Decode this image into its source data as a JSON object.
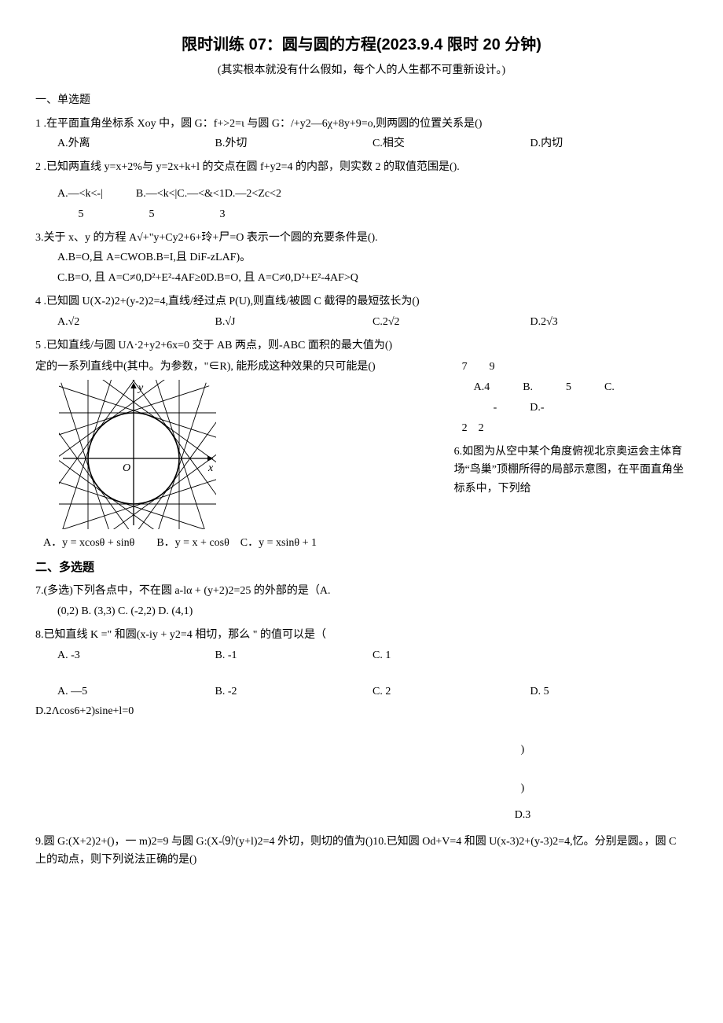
{
  "title": "限时训练 07：圆与圆的方程(2023.9.4 限时 20 分钟)",
  "subtitle": "(其实根本就没有什么假如，每个人的人生都不可重新设计。)",
  "section1": "一、单选题",
  "q1": {
    "text": "1 .在平面直角坐标系 Xoy 中，圆 G：f+>2=ι 与圆 G：/+y2—6χ+8y+9=o,则两圆的位置关系是()",
    "A": "A.外离",
    "B": "B.外切",
    "C": "C.相交",
    "D": "D.内切"
  },
  "q2": {
    "text": "2 .已知两直线 y=x+2%与 y=2x+k+l 的交点在圆 f+y2=4 的内部，则实数 2 的取值范围是().",
    "optLine": "A.—<k<-|   B.—<k<|C.—<&<1D.—2<Zc<2",
    "numA": "5",
    "numB": "5",
    "numC": "3"
  },
  "q3": {
    "text": "3.关于 x、y 的方程 A√+\"y+Cy2+6+玲+尸=O 表示一个圆的充要条件是().",
    "l1": "A.B=O,且 A=CWOB.B=I,且 DiF-zLAF)。",
    "l2": "C.B=O, 且 A=C≠0,D²+E²-4AF≥0D.B=O, 且 A=C≠0,D²+E²-4AF>Q"
  },
  "q4": {
    "text": "4 .已知圆 U(X-2)2+(y-2)2=4,直线/经过点 P(U),则直线/被圆 C 截得的最短弦长为()",
    "A": "A.√2",
    "B": "B.√J",
    "C": "C.2√2",
    "D": "D.2√3"
  },
  "q5": {
    "text": "5 .已知直线/与圆 UΛ·2+y2+6x=0 交于 AB 两点，则-ABC 面积的最大值为()",
    "text2": "定的一系列直线中(其中。为参数，\"∈R), 能形成这种效果的只可能是()",
    "rNums": "7  9",
    "rOpts1": "A.4   B.   5   C.",
    "rOpts2": "-   D.-",
    "rNums2": "2 2",
    "rText": "6.如图为从空中某个角度俯视北京奥运会主体育场“鸟巢”顶棚所得的局部示意图，在平面直角坐标系中，下列给",
    "figOpts": "A．y = xcosθ + sinθ  B．y = x + cosθ C．y = xsinθ + 1"
  },
  "section2": "二、多选题",
  "q7": {
    "l1": "7.(多选)下列各点中，不在圆 a-lα + (y+2)2=25 的外部的是（A.",
    "l2": "(0,2) B. (3,3) C. (-2,2) D. (4,1)"
  },
  "q8": {
    "text": "8.已知直线 K =\" 和圆(x-iy + y2=4 相切，那么 \" 的值可以是（",
    "A1": "A. -3",
    "B1": "B. -1",
    "C1": "C. 1",
    "A2": "A. —5",
    "B2": "B. -2",
    "C2": "C. 2",
    "D2": "D. 5",
    "l3": "D.2Λcos6+2)sine+l=0",
    "p1": ")",
    "p2": ")",
    "p3": "D.3"
  },
  "q9": "9.圆 G:(X+2)2+()，一 m)2=9 与圆 G:(X-⑼'(y+l)2=4 外切，则切的值为()10.已知圆 Od+V=4 和圆 U(x-3)2+(y-3)2=4,忆。分别是圆。，圆 C 上的动点，则下列说法正确的是()",
  "fig": {
    "circle_r": 58,
    "stroke": "#000000",
    "axis_color": "#000000",
    "tangent_n": 20,
    "labels": {
      "x": "x",
      "y": "y",
      "O": "O"
    }
  }
}
